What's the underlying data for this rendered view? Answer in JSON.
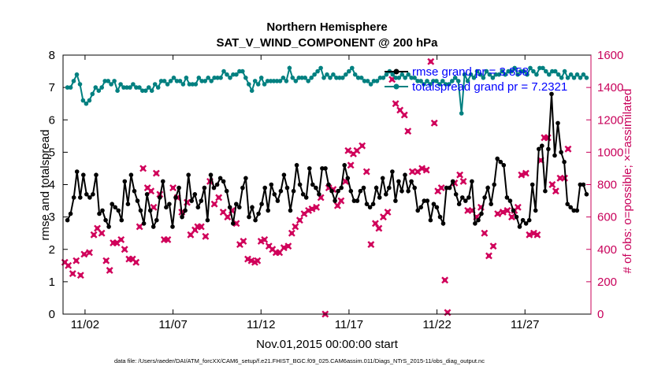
{
  "chart_data": {
    "type": "line",
    "title": "Northern Hemisphere",
    "subtitle": "SAT_V_WIND_COMPONENT @ 200 hPa",
    "xlabel": "Nov.01,2015 00:00:00 start",
    "ylabel_left": "rmse and totalspread",
    "ylabel_right": "# of obs: o=possible; ×=assimilated",
    "xlim": [
      0.75,
      30.75
    ],
    "ylim_left": [
      0,
      8
    ],
    "ylim_right": [
      0,
      1600
    ],
    "x_ticks": [
      {
        "value": 2,
        "label": "11/02"
      },
      {
        "value": 7,
        "label": "11/07"
      },
      {
        "value": 12,
        "label": "11/12"
      },
      {
        "value": 17,
        "label": "11/17"
      },
      {
        "value": 22,
        "label": "11/22"
      },
      {
        "value": 27,
        "label": "11/27"
      }
    ],
    "y_ticks_left": [
      0,
      1,
      2,
      3,
      4,
      5,
      6,
      7,
      8
    ],
    "y_ticks_right": [
      0,
      200,
      400,
      600,
      800,
      1000,
      1200,
      1400,
      1600
    ],
    "legend": [
      {
        "name": "rmse grand pr = 3.858",
        "color": "#000000",
        "marker": "o"
      },
      {
        "name": "totalspread grand pr = 7.2321",
        "color": "#008080",
        "marker": "o"
      }
    ],
    "series": [
      {
        "name": "rmse",
        "axis": "left",
        "color": "#000000",
        "y": [
          2.9,
          3.1,
          3.6,
          4.4,
          3.6,
          4.3,
          3.7,
          3.6,
          3.7,
          4.3,
          3.1,
          3.2,
          2.9,
          2.7,
          3.4,
          3.3,
          3.2,
          2.9,
          4.1,
          3.4,
          4.3,
          3.8,
          3.5,
          3.2,
          2.8,
          3.7,
          3.2,
          2.7,
          2.9,
          3.6,
          4.1,
          3.3,
          3.4,
          2.7,
          3.6,
          3.9,
          3.0,
          3.2,
          4.3,
          3.5,
          3.7,
          3.3,
          3.5,
          3.9,
          2.9,
          4.3,
          3.9,
          4.0,
          4.2,
          4.1,
          3.8,
          3.3,
          2.8,
          3.4,
          3.3,
          3.9,
          4.2,
          3.0,
          3.3,
          2.9,
          3.1,
          3.4,
          3.9,
          3.2,
          4.0,
          3.7,
          3.5,
          3.8,
          4.3,
          3.9,
          3.2,
          3.8,
          4.6,
          4.0,
          3.7,
          3.6,
          4.5,
          4.0,
          3.9,
          3.7,
          4.5,
          4.5,
          4.0,
          3.8,
          3.5,
          3.8,
          3.9,
          4.6,
          4.2,
          3.8,
          3.5,
          3.5,
          3.8,
          3.9,
          3.4,
          3.3,
          3.4,
          3.9,
          3.6,
          4.2,
          3.7,
          3.9,
          4.4,
          3.5,
          4.1,
          3.8,
          4.3,
          3.8,
          4.1,
          3.9,
          3.2,
          3.3,
          3.5,
          3.5,
          2.9,
          3.4,
          3.3,
          3.0,
          2.8,
          3.9,
          3.9,
          4.1,
          3.7,
          3.4,
          3.6,
          3.5,
          3.6,
          4.1,
          2.8,
          2.9,
          3.1,
          3.6,
          3.9,
          3.4,
          4.0,
          4.8,
          4.7,
          4.6,
          3.6,
          3.5,
          3.2,
          3.0,
          2.7,
          2.9,
          2.8,
          2.9,
          4.0,
          3.2,
          5.1,
          5.2,
          3.8,
          5.1,
          6.8,
          4.9,
          5.9,
          5.0,
          4.7,
          3.4,
          3.3,
          3.2,
          3.2,
          4.0,
          4.0,
          3.7
        ]
      },
      {
        "name": "totalspread",
        "axis": "left",
        "color": "#008080",
        "y": [
          7.0,
          7.0,
          7.2,
          7.4,
          7.1,
          6.6,
          6.5,
          6.6,
          6.8,
          7.0,
          6.9,
          7.0,
          7.2,
          7.2,
          7.1,
          7.2,
          6.9,
          7.1,
          7.0,
          7.0,
          7.0,
          7.1,
          7.0,
          7.0,
          6.9,
          6.9,
          7.0,
          6.9,
          7.1,
          7.0,
          7.2,
          7.2,
          7.1,
          7.2,
          7.3,
          7.2,
          7.2,
          7.1,
          7.3,
          7.1,
          7.1,
          7.1,
          7.3,
          7.2,
          7.2,
          7.3,
          7.2,
          7.3,
          7.3,
          7.3,
          7.5,
          7.4,
          7.3,
          7.4,
          7.4,
          7.5,
          7.5,
          7.3,
          7.1,
          6.9,
          7.2,
          7.1,
          7.3,
          7.1,
          7.2,
          7.2,
          7.2,
          7.2,
          7.2,
          7.3,
          7.2,
          7.6,
          7.3,
          7.2,
          7.3,
          7.3,
          7.3,
          7.2,
          7.3,
          7.4,
          7.5,
          7.6,
          7.3,
          7.4,
          7.3,
          7.4,
          7.3,
          7.3,
          7.3,
          7.4,
          7.5,
          7.6,
          7.4,
          7.3,
          7.3,
          7.2,
          7.2,
          7.1,
          7.2,
          7.2,
          7.3,
          7.3,
          7.4,
          7.5,
          7.4,
          7.3,
          7.3,
          7.4,
          7.3,
          7.4,
          7.3,
          7.3,
          7.2,
          7.2,
          7.1,
          7.2,
          7.1,
          7.2,
          7.2,
          7.1,
          7.2,
          7.1,
          7.1,
          7.2,
          7.3,
          7.2,
          6.2,
          7.4,
          7.2,
          7.4,
          7.3,
          7.5,
          7.4,
          7.3,
          7.5,
          7.4,
          7.3,
          7.4,
          7.4,
          7.5,
          7.4,
          7.5,
          7.5,
          7.6,
          7.4,
          7.5,
          7.5,
          7.4,
          7.6,
          7.5,
          7.4,
          7.6,
          7.6,
          7.5,
          7.4,
          7.5,
          7.5,
          7.4,
          7.3,
          7.5,
          7.3,
          7.4,
          7.3,
          7.4,
          7.3,
          7.4,
          7.3
        ]
      },
      {
        "name": "obs",
        "axis": "right",
        "color": "#d0005a",
        "marker": "x",
        "points": [
          [
            0.85,
            320
          ],
          [
            1.05,
            300
          ],
          [
            1.3,
            250
          ],
          [
            1.5,
            330
          ],
          [
            1.75,
            240
          ],
          [
            1.95,
            370
          ],
          [
            2.25,
            380
          ],
          [
            2.5,
            490
          ],
          [
            2.7,
            530
          ],
          [
            2.95,
            500
          ],
          [
            3.2,
            330
          ],
          [
            3.4,
            270
          ],
          [
            3.6,
            440
          ],
          [
            3.8,
            440
          ],
          [
            4.05,
            460
          ],
          [
            4.25,
            400
          ],
          [
            4.5,
            340
          ],
          [
            4.7,
            340
          ],
          [
            4.9,
            320
          ],
          [
            5.1,
            540
          ],
          [
            5.3,
            900
          ],
          [
            5.55,
            780
          ],
          [
            5.75,
            760
          ],
          [
            5.9,
            660
          ],
          [
            6.05,
            870
          ],
          [
            6.25,
            740
          ],
          [
            6.5,
            460
          ],
          [
            6.7,
            460
          ],
          [
            7.0,
            780
          ],
          [
            7.25,
            720
          ],
          [
            7.5,
            630
          ],
          [
            7.8,
            690
          ],
          [
            8.0,
            490
          ],
          [
            8.25,
            520
          ],
          [
            8.4,
            540
          ],
          [
            8.6,
            540
          ],
          [
            8.85,
            480
          ],
          [
            9.1,
            820
          ],
          [
            9.35,
            680
          ],
          [
            9.6,
            720
          ],
          [
            9.85,
            630
          ],
          [
            10.1,
            600
          ],
          [
            10.35,
            640
          ],
          [
            10.6,
            560
          ],
          [
            10.8,
            430
          ],
          [
            11.0,
            450
          ],
          [
            11.25,
            340
          ],
          [
            11.45,
            330
          ],
          [
            11.65,
            320
          ],
          [
            11.8,
            330
          ],
          [
            12.0,
            450
          ],
          [
            12.2,
            460
          ],
          [
            12.45,
            420
          ],
          [
            12.65,
            400
          ],
          [
            12.85,
            380
          ],
          [
            13.05,
            380
          ],
          [
            13.3,
            410
          ],
          [
            13.55,
            420
          ],
          [
            13.75,
            500
          ],
          [
            13.95,
            540
          ],
          [
            14.2,
            580
          ],
          [
            14.45,
            620
          ],
          [
            14.7,
            640
          ],
          [
            14.9,
            650
          ],
          [
            15.15,
            660
          ],
          [
            15.4,
            720
          ],
          [
            15.65,
            0
          ],
          [
            15.85,
            780
          ],
          [
            16.1,
            770
          ],
          [
            16.35,
            670
          ],
          [
            16.55,
            700
          ],
          [
            16.8,
            820
          ],
          [
            16.95,
            1010
          ],
          [
            17.1,
            920
          ],
          [
            17.25,
            990
          ],
          [
            17.45,
            1010
          ],
          [
            17.75,
            1040
          ],
          [
            18.0,
            880
          ],
          [
            18.25,
            430
          ],
          [
            18.5,
            560
          ],
          [
            18.7,
            530
          ],
          [
            18.95,
            600
          ],
          [
            19.2,
            630
          ],
          [
            19.45,
            1450
          ],
          [
            19.65,
            1300
          ],
          [
            19.9,
            1260
          ],
          [
            20.15,
            1230
          ],
          [
            20.35,
            1130
          ],
          [
            20.6,
            880
          ],
          [
            20.9,
            880
          ],
          [
            21.15,
            900
          ],
          [
            21.4,
            890
          ],
          [
            21.65,
            1560
          ],
          [
            21.85,
            1180
          ],
          [
            22.05,
            760
          ],
          [
            22.25,
            780
          ],
          [
            22.45,
            210
          ],
          [
            22.6,
            10
          ],
          [
            23.0,
            810
          ],
          [
            23.3,
            860
          ],
          [
            23.5,
            820
          ],
          [
            23.75,
            640
          ],
          [
            24.0,
            640
          ],
          [
            24.25,
            600
          ],
          [
            24.5,
            660
          ],
          [
            24.7,
            500
          ],
          [
            24.95,
            360
          ],
          [
            25.2,
            420
          ],
          [
            25.45,
            620
          ],
          [
            25.75,
            630
          ],
          [
            26.0,
            640
          ],
          [
            26.25,
            600
          ],
          [
            26.4,
            640
          ],
          [
            26.6,
            660
          ],
          [
            26.8,
            860
          ],
          [
            27.05,
            870
          ],
          [
            27.25,
            490
          ],
          [
            27.5,
            500
          ],
          [
            27.7,
            490
          ],
          [
            27.9,
            950
          ],
          [
            28.1,
            1090
          ],
          [
            28.3,
            1090
          ],
          [
            28.55,
            800
          ],
          [
            28.75,
            760
          ],
          [
            29.0,
            840
          ],
          [
            29.25,
            840
          ],
          [
            29.45,
            1020
          ]
        ]
      }
    ],
    "footnote": "data file: /Users/raeder/DAI/ATM_forcXX/CAM6_setup/f.e21.FHIST_BGC.f09_025.CAM6assim.011/Diags_NTrS_2015-11/obs_diag_output.nc"
  }
}
